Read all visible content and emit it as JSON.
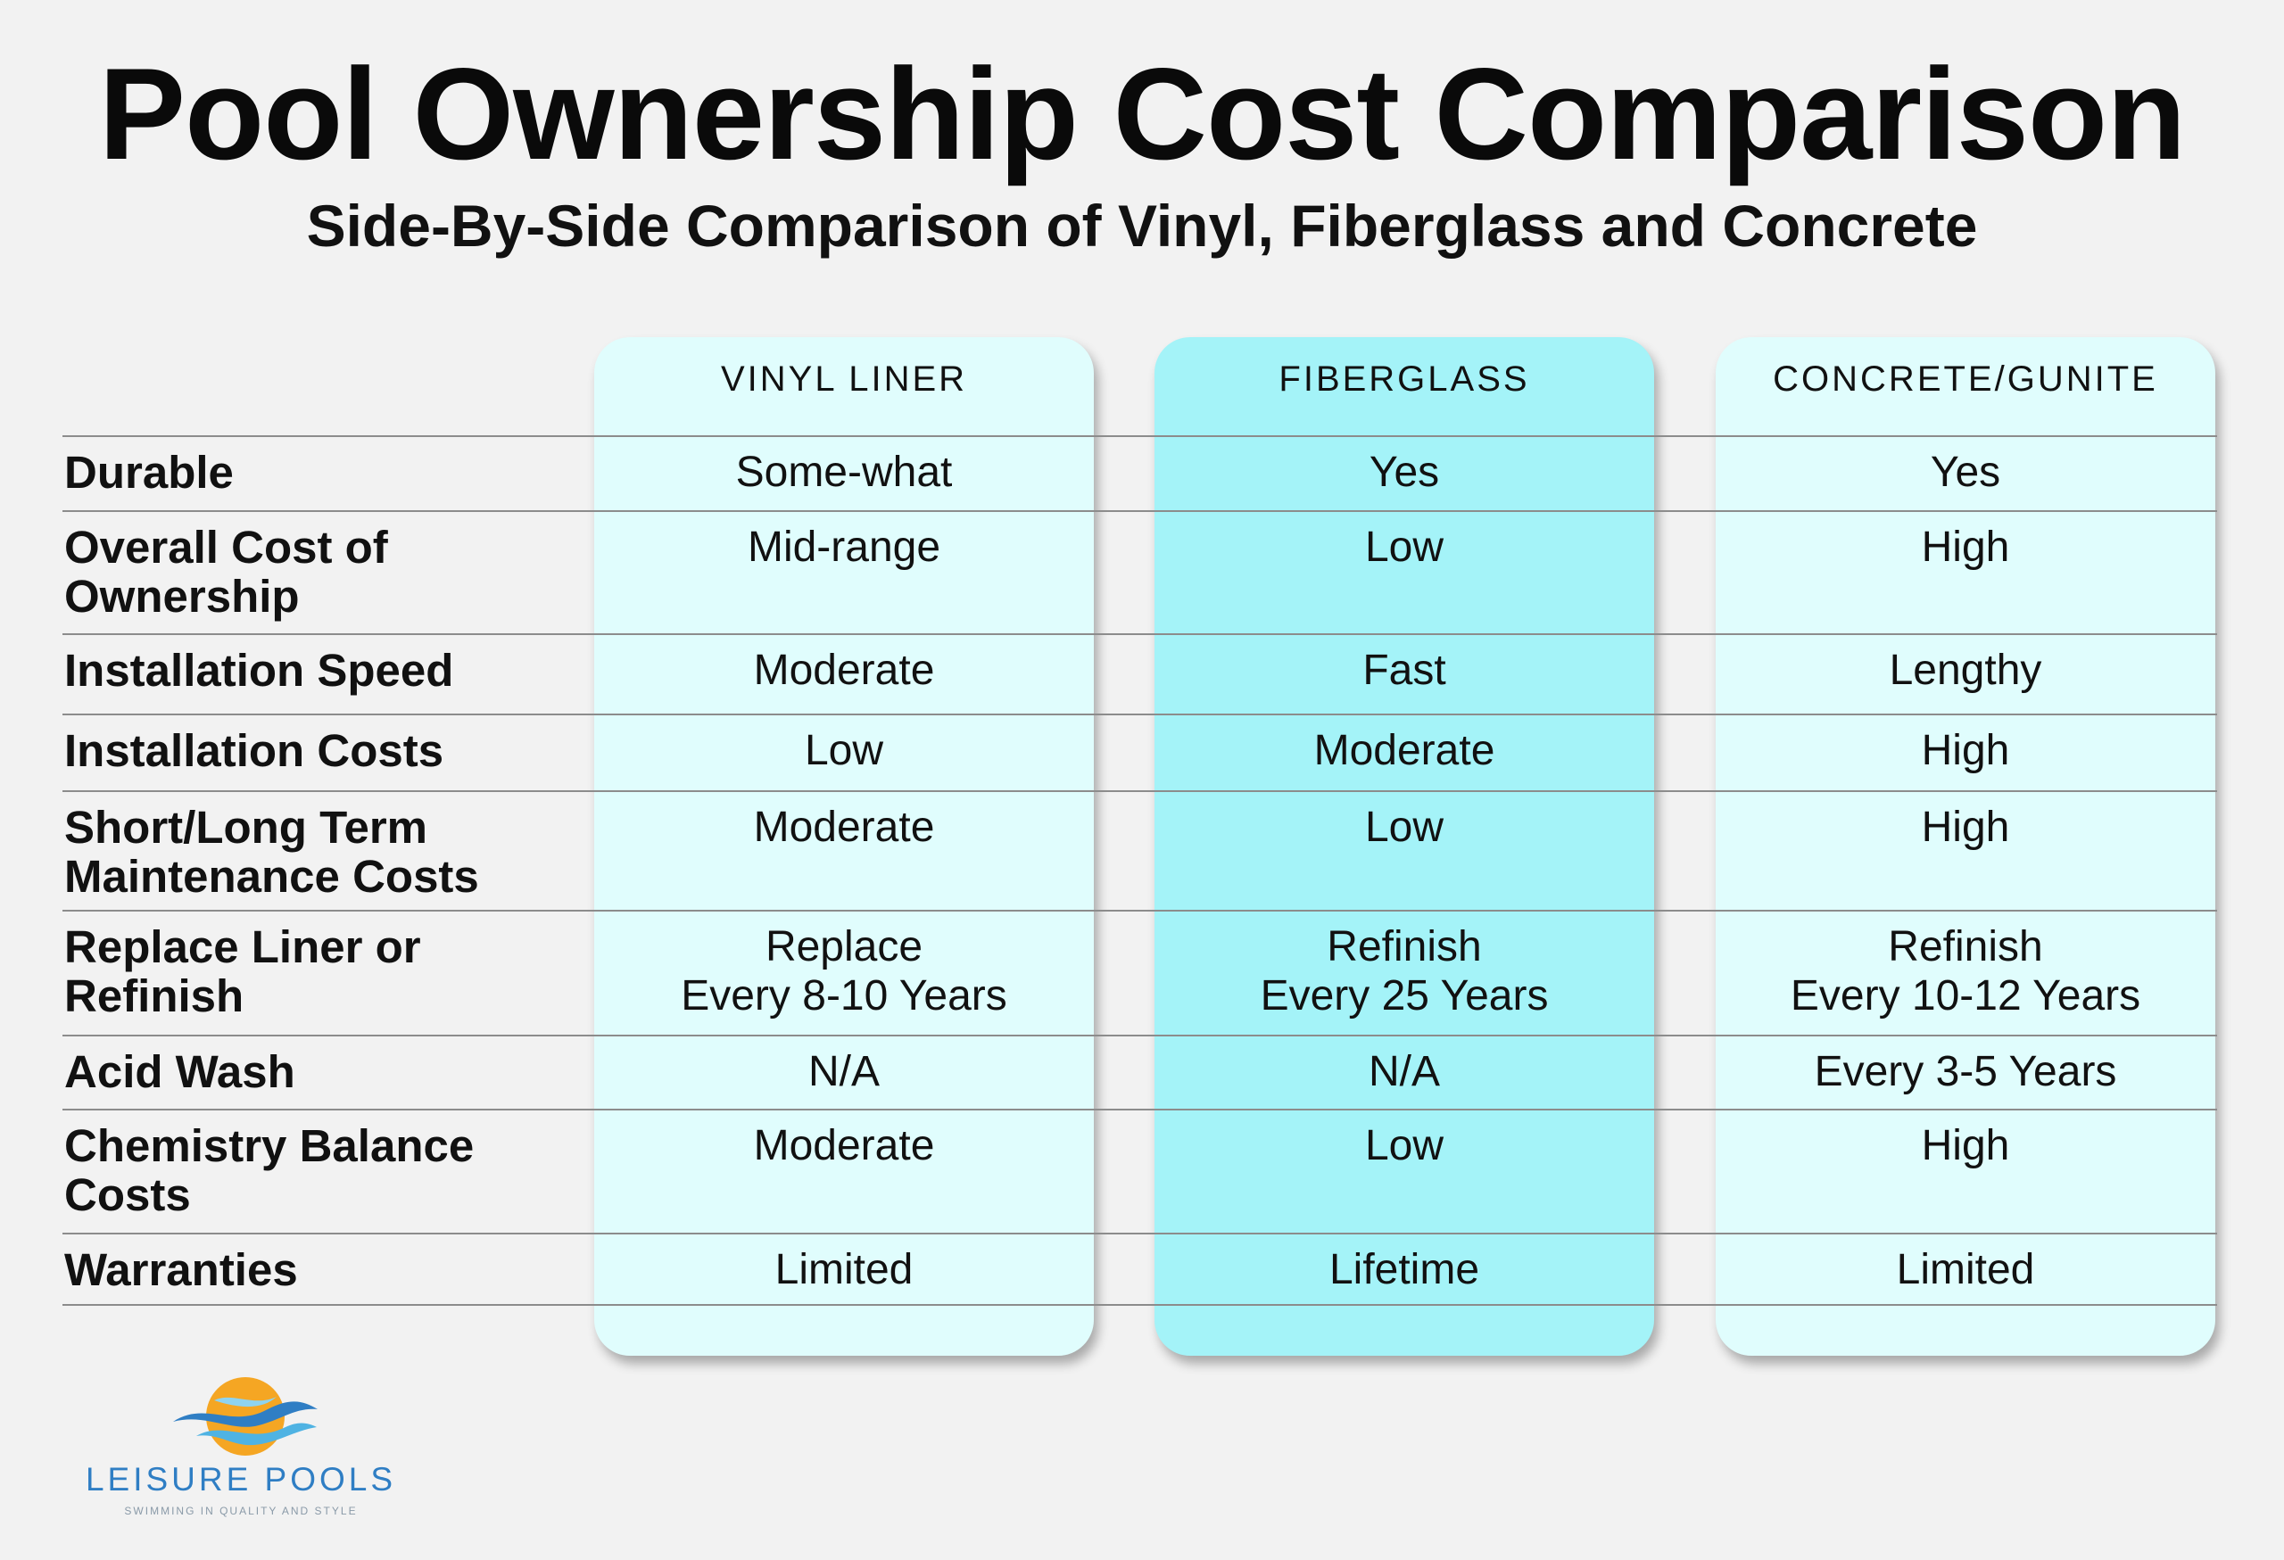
{
  "header": {
    "title": "Pool Ownership Cost Comparison",
    "subtitle": "Side-By-Side Comparison of Vinyl, Fiberglass and Concrete"
  },
  "columns": [
    "VINYL LINER",
    "FIBERGLASS",
    "CONCRETE/GUNITE"
  ],
  "rows": [
    {
      "label": "Durable",
      "values": [
        "Some-what",
        "Yes",
        "Yes"
      ]
    },
    {
      "label": "Overall Cost of\nOwnership",
      "values": [
        "Mid-range",
        "Low",
        "High"
      ]
    },
    {
      "label": "Installation Speed",
      "values": [
        "Moderate",
        "Fast",
        "Lengthy"
      ]
    },
    {
      "label": "Installation Costs",
      "values": [
        "Low",
        "Moderate",
        "High"
      ]
    },
    {
      "label": "Short/Long Term\nMaintenance Costs",
      "values": [
        "Moderate",
        "Low",
        "High"
      ]
    },
    {
      "label": "Replace Liner or\nRefinish",
      "values": [
        "Replace\nEvery 8-10 Years",
        "Refinish\nEvery 25 Years",
        "Refinish\nEvery 10-12 Years"
      ]
    },
    {
      "label": "Acid Wash",
      "values": [
        "N/A",
        "N/A",
        "Every 3-5 Years"
      ]
    },
    {
      "label": "Chemistry Balance\nCosts",
      "values": [
        "Moderate",
        "Low",
        "High"
      ]
    },
    {
      "label": "Warranties",
      "values": [
        "Limited",
        "Lifetime",
        "Limited"
      ]
    }
  ],
  "logo": {
    "name": "LEISURE POOLS",
    "tagline": "SWIMMING IN QUALITY AND STYLE"
  },
  "colors": {
    "highlight_column": "#a4f3f8",
    "column": "#e0fdfd",
    "logo_blue": "#2f7ec4",
    "logo_orange": "#f5a623"
  }
}
